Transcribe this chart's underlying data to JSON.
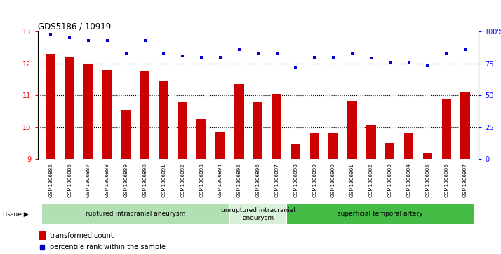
{
  "title": "GDS5186 / 10919",
  "samples": [
    "GSM1306885",
    "GSM1306886",
    "GSM1306887",
    "GSM1306888",
    "GSM1306889",
    "GSM1306890",
    "GSM1306891",
    "GSM1306892",
    "GSM1306893",
    "GSM1306894",
    "GSM1306895",
    "GSM1306896",
    "GSM1306897",
    "GSM1306898",
    "GSM1306899",
    "GSM1306900",
    "GSM1306901",
    "GSM1306902",
    "GSM1306903",
    "GSM1306904",
    "GSM1306905",
    "GSM1306906",
    "GSM1306907"
  ],
  "transformed_count": [
    12.3,
    12.2,
    12.0,
    11.8,
    10.55,
    11.78,
    11.45,
    10.78,
    10.25,
    9.85,
    11.35,
    10.78,
    11.05,
    9.45,
    9.82,
    9.82,
    10.8,
    10.05,
    9.5,
    9.82,
    9.2,
    10.9,
    11.1
  ],
  "percentile_rank": [
    98,
    95,
    93,
    93,
    83,
    93,
    83,
    81,
    80,
    80,
    86,
    83,
    83,
    72,
    80,
    80,
    83,
    79,
    76,
    76,
    73,
    83,
    86
  ],
  "ylim_left": [
    9,
    13
  ],
  "ylim_right": [
    0,
    100
  ],
  "yticks_left": [
    9,
    10,
    11,
    12,
    13
  ],
  "yticks_right": [
    0,
    25,
    50,
    75,
    100
  ],
  "ytick_labels_right": [
    "0",
    "25",
    "50",
    "75",
    "100%"
  ],
  "bar_color": "#cc0000",
  "dot_color": "#0000cc",
  "groups": [
    {
      "label": "ruptured intracranial aneurysm",
      "start": 0,
      "end": 10,
      "color": "#b3e0b3"
    },
    {
      "label": "unruptured intracranial\naneurysm",
      "start": 10,
      "end": 13,
      "color": "#d9f0d9"
    },
    {
      "label": "superficial temporal artery",
      "start": 13,
      "end": 23,
      "color": "#44bb44"
    }
  ],
  "tissue_label": "tissue",
  "legend_bar_label": "transformed count",
  "legend_dot_label": "percentile rank within the sample",
  "xtick_bg_color": "#d4d4d4"
}
